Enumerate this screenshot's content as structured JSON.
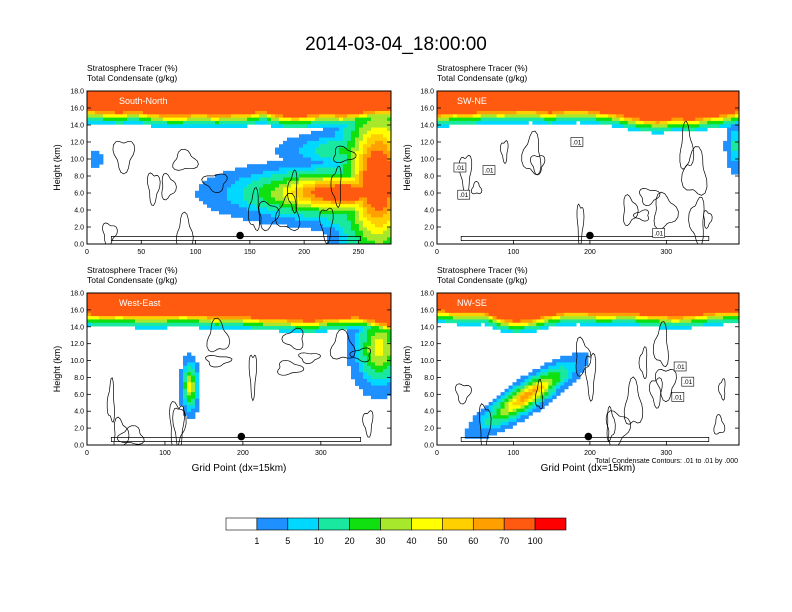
{
  "figure": {
    "title": "2014-03-04_18:00:00",
    "contour_note": "Total Condensate Contours: .01 to .01 by .000"
  },
  "colors": {
    "levels": [
      "#ffffff",
      "#1e90ff",
      "#00d8ff",
      "#18e8a0",
      "#10e010",
      "#a8e82c",
      "#ffff00",
      "#ffd000",
      "#ffa000",
      "#ff5a10",
      "#ff0000"
    ],
    "contour": "#000000",
    "axis": "#000000"
  },
  "chart_data": [
    {
      "type": "heatmap",
      "name_label": "South-North",
      "title_lines": [
        "Stratosphere Tracer   (%)",
        "Total Condensate   (g/kg)"
      ],
      "ylabel": "Height (km)",
      "xlabel": "",
      "xlim": [
        0,
        280
      ],
      "ylim": [
        0,
        18
      ],
      "xticks": [
        0,
        50,
        100,
        150,
        200,
        250
      ],
      "yticks": [
        "0.0",
        "2.0",
        "4.0",
        "6.0",
        "8.0",
        "10.0",
        "12.0",
        "14.0",
        "16.0",
        "18.0"
      ],
      "marker": {
        "x": 141,
        "y": 1.0
      },
      "contour_labels": [],
      "tropopause_km": [
        15.6,
        15.4,
        15.3,
        15.5,
        15.2,
        15.0,
        15.0,
        15.2,
        15.0,
        15.1,
        15.2,
        15.5,
        15.0,
        14.8,
        15.0,
        15.2,
        15.0,
        15.3,
        15.5,
        15.6
      ],
      "plumes": [
        {
          "x": 268,
          "y": 7.5,
          "sx": 18,
          "sy": 5.0,
          "v": 90
        },
        {
          "x": 235,
          "y": 6.0,
          "sx": 45,
          "sy": 1.4,
          "v": 85
        },
        {
          "x": 250,
          "y": 11.0,
          "sx": 30,
          "sy": 1.0,
          "v": 25
        },
        {
          "x": 255,
          "y": 3.0,
          "sx": 25,
          "sy": 0.8,
          "v": 25
        },
        {
          "x": 8,
          "y": 10.0,
          "sx": 3,
          "sy": 0.6,
          "v": 5
        }
      ]
    },
    {
      "type": "heatmap",
      "name_label": "SW-NE",
      "title_lines": [
        "Stratosphere Tracer   (%)",
        "Total Condensate   (g/kg)"
      ],
      "ylabel": "Height (km)",
      "xlabel": "",
      "xlim": [
        0,
        395
      ],
      "ylim": [
        0,
        18
      ],
      "xticks": [
        0,
        100,
        200,
        300
      ],
      "yticks": [
        "0.0",
        "2.0",
        "4.0",
        "6.0",
        "8.0",
        "10.0",
        "12.0",
        "14.0",
        "16.0",
        "18.0"
      ],
      "marker": {
        "x": 200,
        "y": 1.0
      },
      "contour_labels": [
        {
          "x": 30,
          "y": 9.0,
          "t": ".01"
        },
        {
          "x": 68,
          "y": 8.7,
          "t": ".01"
        },
        {
          "x": 35,
          "y": 5.8,
          "t": ".01"
        },
        {
          "x": 183,
          "y": 12.0,
          "t": ".01"
        },
        {
          "x": 290,
          "y": 1.3,
          "t": ".01"
        }
      ],
      "tropopause_km": [
        15.0,
        15.3,
        15.2,
        15.5,
        15.4,
        15.5,
        15.6,
        15.3,
        15.5,
        15.6,
        15.4,
        15.2,
        14.8,
        14.5,
        14.3,
        14.6,
        14.5,
        14.8,
        15.0,
        15.4
      ],
      "plumes": [
        {
          "x": 390,
          "y": 11.5,
          "sx": 6,
          "sy": 1.5,
          "v": 12
        }
      ]
    },
    {
      "type": "heatmap",
      "name_label": "West-East",
      "title_lines": [
        "Stratosphere Tracer   (%)",
        "Total Condensate   (g/kg)"
      ],
      "ylabel": "Height (km)",
      "xlabel": "Grid Point (dx=15km)",
      "xlim": [
        0,
        390
      ],
      "ylim": [
        0,
        18
      ],
      "xticks": [
        0,
        100,
        200,
        300
      ],
      "yticks": [
        "0.0",
        "2.0",
        "4.0",
        "6.0",
        "8.0",
        "10.0",
        "12.0",
        "14.0",
        "16.0",
        "18.0"
      ],
      "marker": {
        "x": 198,
        "y": 1.0
      },
      "contour_labels": [],
      "tropopause_km": [
        15.4,
        15.2,
        15.3,
        15.2,
        15.1,
        15.2,
        15.3,
        15.2,
        15.0,
        15.1,
        15.0,
        14.8,
        14.8,
        14.6,
        14.5,
        14.8,
        14.9,
        15.0,
        14.5,
        14.0
      ],
      "plumes": [
        {
          "x": 132,
          "y": 7.0,
          "sx": 5,
          "sy": 1.4,
          "v": 45
        },
        {
          "x": 375,
          "y": 11.5,
          "sx": 15,
          "sy": 2.2,
          "v": 45
        }
      ]
    },
    {
      "type": "heatmap",
      "name_label": "NW-SE",
      "title_lines": [
        "Stratosphere Tracer   (%)",
        "Total Condensate   (g/kg)"
      ],
      "ylabel": "Height (km)",
      "xlabel": "Grid Point (dx=15km)",
      "xlim": [
        0,
        395
      ],
      "ylim": [
        0,
        18
      ],
      "xticks": [
        0,
        100,
        200,
        300
      ],
      "yticks": [
        "0.0",
        "2.0",
        "4.0",
        "6.0",
        "8.0",
        "10.0",
        "12.0",
        "14.0",
        "16.0",
        "18.0"
      ],
      "marker": {
        "x": 198,
        "y": 1.0
      },
      "contour_labels": [
        {
          "x": 318,
          "y": 9.3,
          "t": ".01"
        },
        {
          "x": 328,
          "y": 7.5,
          "t": ".01"
        },
        {
          "x": 315,
          "y": 5.7,
          "t": ".01"
        }
      ],
      "tropopause_km": [
        15.8,
        15.6,
        15.5,
        15.6,
        14.8,
        14.5,
        14.7,
        15.2,
        15.5,
        15.6,
        15.4,
        15.4,
        15.5,
        15.3,
        15.2,
        15.0,
        15.2,
        15.4,
        15.6,
        15.6
      ],
      "plumes": [
        {
          "x": 118,
          "y": 5.8,
          "sx": 28,
          "sy": 0.9,
          "v": 65,
          "tilt": 0.055
        }
      ]
    }
  ],
  "colorbar": {
    "labels": [
      "1",
      "5",
      "10",
      "20",
      "30",
      "40",
      "50",
      "60",
      "70",
      "100"
    ]
  }
}
